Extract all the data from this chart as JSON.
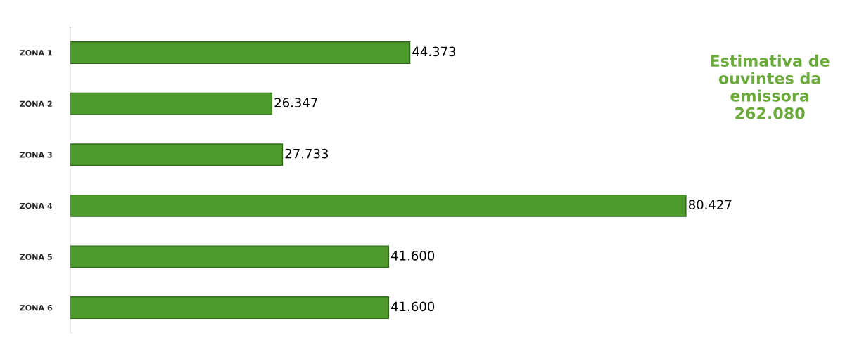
{
  "chart_data": {
    "type": "bar",
    "orientation": "horizontal",
    "categories": [
      "ZONA 1",
      "ZONA 2",
      "ZONA 3",
      "ZONA 4",
      "ZONA 5",
      "ZONA 6"
    ],
    "values": [
      44373,
      26347,
      27733,
      80427,
      41600,
      41600
    ],
    "value_labels": [
      "44.373",
      "26.347",
      "27.733",
      "80.427",
      "41.600",
      "41.600"
    ],
    "color": "#4f9a2c",
    "annotations": [
      "Estimativa de ouvintes da emissora 262.080"
    ],
    "grid": false,
    "legend": false
  }
}
